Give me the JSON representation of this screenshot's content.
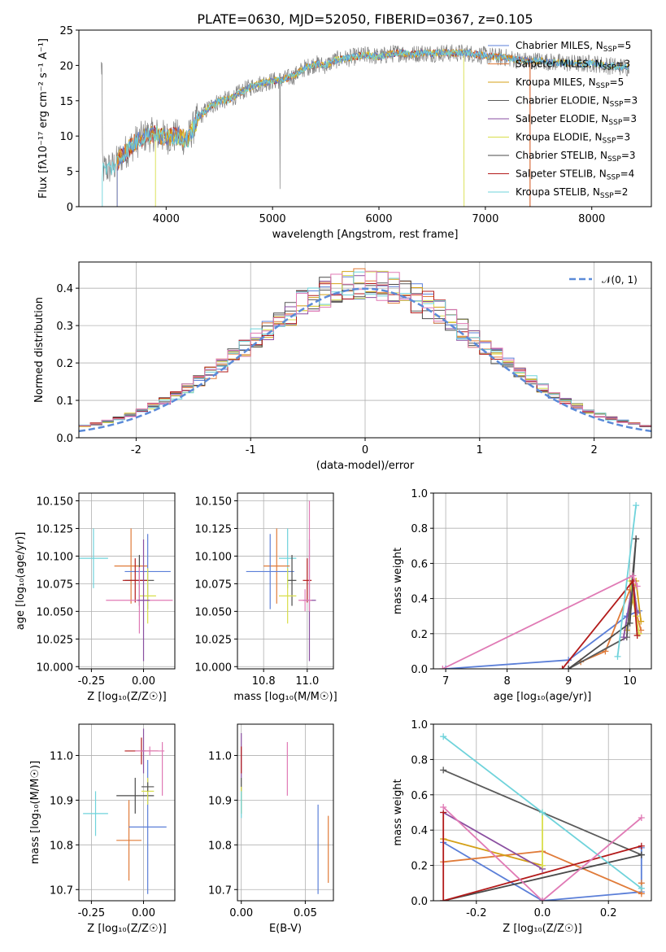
{
  "colors": {
    "Chabrier MILES": "#5b7fd8",
    "Salpeter MILES": "#e07b39",
    "Kroupa MILES": "#d4a017",
    "Chabrier ELODIE": "#5a5a5a",
    "Salpeter ELODIE": "#8a4fa0",
    "Kroupa ELODIE": "#d8de4a",
    "Chabrier STELIB": "#4a4a4a",
    "Salpeter STELIB": "#b31b1b",
    "Kroupa STELIB": "#6fd3db",
    "extra_pink": "#e07ab5",
    "gaussian": "#5b8ad8",
    "data_spectrum": "#808080"
  },
  "chart_data": [
    {
      "id": "spectrum",
      "type": "line",
      "title": "PLATE=0630, MJD=52050, FIBERID=0367, z=0.105",
      "xlabel": "wavelength [Angstrom, rest frame]",
      "ylabel": "Flux [fλ10⁻¹⁷ erg cm⁻² s⁻¹ A⁻¹]",
      "xlim": [
        3180,
        8560
      ],
      "ylim": [
        0,
        25
      ],
      "xticks": [
        4000,
        5000,
        6000,
        7000,
        8000
      ],
      "yticks": [
        0,
        5,
        10,
        15,
        20,
        25
      ],
      "grid": false,
      "legend": "top-right",
      "legend_entries": [
        {
          "label": "Chabrier MILES, N",
          "sub": "SSP",
          "tail": "=5",
          "color_key": "Chabrier MILES"
        },
        {
          "label": "Salpeter MILES, N",
          "sub": "SSP",
          "tail": "=3",
          "color_key": "Salpeter MILES"
        },
        {
          "label": "Kroupa MILES, N",
          "sub": "SSP",
          "tail": "=5",
          "color_key": "Kroupa MILES"
        },
        {
          "label": "Chabrier ELODIE, N",
          "sub": "SSP",
          "tail": "=3",
          "color_key": "Chabrier ELODIE"
        },
        {
          "label": "Salpeter ELODIE, N",
          "sub": "SSP",
          "tail": "=3",
          "color_key": "Salpeter ELODIE"
        },
        {
          "label": "Kroupa ELODIE, N",
          "sub": "SSP",
          "tail": "=3",
          "color_key": "Kroupa ELODIE"
        },
        {
          "label": "Chabrier STELIB, N",
          "sub": "SSP",
          "tail": "=3",
          "color_key": "Chabrier STELIB"
        },
        {
          "label": "Salpeter STELIB, N",
          "sub": "SSP",
          "tail": "=4",
          "color_key": "Salpeter STELIB"
        },
        {
          "label": "Kroupa STELIB, N",
          "sub": "SSP",
          "tail": "=2",
          "color_key": "Kroupa STELIB"
        }
      ],
      "continuum": {
        "x": [
          3400,
          3500,
          3600,
          3700,
          3800,
          3900,
          4000,
          4100,
          4200,
          4300,
          4400,
          4500,
          4600,
          4700,
          4800,
          4900,
          5000,
          5100,
          5200,
          5300,
          5400,
          5500,
          5600,
          5700,
          5800,
          5900,
          6000,
          6100,
          6200,
          6300,
          6400,
          6500,
          6600,
          6700,
          6800,
          6900,
          7000,
          7100,
          7200,
          7300,
          7400,
          7500,
          7600,
          7700,
          7800,
          7900,
          8000,
          8100,
          8200,
          8300,
          8350
        ],
        "y": [
          5.2,
          5.6,
          7.5,
          9.0,
          10.0,
          10.3,
          9.8,
          10.0,
          9.5,
          12.5,
          14.0,
          15.0,
          15.2,
          16.2,
          17.0,
          17.5,
          17.8,
          18.0,
          18.5,
          19.6,
          20.2,
          20.0,
          20.8,
          21.0,
          21.3,
          21.5,
          21.2,
          21.6,
          21.8,
          21.5,
          21.8,
          21.7,
          21.8,
          21.7,
          21.8,
          21.6,
          21.4,
          21.2,
          21.1,
          20.8,
          20.6,
          20.7,
          20.5,
          20.4,
          20.3,
          20.2,
          20.3,
          20.1,
          19.9,
          19.8,
          19.7
        ]
      }
    },
    {
      "id": "residuals",
      "type": "bar",
      "xlabel": "(data-model)/error",
      "ylabel": "Normed distribution",
      "xlim": [
        -2.5,
        2.5
      ],
      "ylim": [
        0,
        0.47
      ],
      "xticks": [
        -2,
        -1,
        0,
        1,
        2
      ],
      "yticks": [
        0.0,
        0.1,
        0.2,
        0.3,
        0.4
      ],
      "grid": true,
      "legend": "top-right",
      "legend_entries": [
        "𝒩(0, 1)"
      ],
      "bin_width": 0.1
    },
    {
      "id": "age_vs_Z",
      "type": "scatter",
      "xlabel": "Z [log₁₀(Z/Z☉)]",
      "ylabel": "age  [log₁₀(age/yr)]",
      "xlim": [
        -0.31,
        0.15
      ],
      "ylim": [
        9.998,
        10.157
      ],
      "xticks": [
        -0.25,
        0.0
      ],
      "yticks": [
        10.0,
        10.025,
        10.05,
        10.075,
        10.1,
        10.125,
        10.15
      ],
      "grid": true,
      "points": [
        {
          "x": -0.24,
          "y": 10.098,
          "xerr": 0.07,
          "yerr": 0.027,
          "color_key": "Kroupa STELIB"
        },
        {
          "x": -0.06,
          "y": 10.091,
          "xerr": 0.08,
          "yerr": 0.034,
          "color_key": "Salpeter MILES"
        },
        {
          "x": 0.02,
          "y": 10.086,
          "xerr": 0.11,
          "yerr": 0.034,
          "color_key": "Chabrier MILES"
        },
        {
          "x": -0.02,
          "y": 10.078,
          "xerr": 0.07,
          "yerr": 0.023,
          "color_key": "Chabrier STELIB"
        },
        {
          "x": -0.04,
          "y": 10.078,
          "xerr": 0.06,
          "yerr": 0.02,
          "color_key": "Salpeter STELIB"
        },
        {
          "x": 0.02,
          "y": 10.064,
          "xerr": 0.04,
          "yerr": 0.025,
          "color_key": "Kroupa ELODIE"
        },
        {
          "x": -0.02,
          "y": 10.06,
          "xerr": 0.16,
          "yerr": 0.03,
          "color_key": "extra_pink"
        },
        {
          "x": 0.0,
          "y": 10.06,
          "xerr": 0.03,
          "yerr": 0.055,
          "color_key": "Salpeter ELODIE"
        }
      ]
    },
    {
      "id": "age_vs_mass",
      "type": "scatter",
      "xlabel": "mass [log₁₀(M/M☉)]",
      "ylabel": "",
      "xlim": [
        10.68,
        11.12
      ],
      "ylim": [
        9.998,
        10.157
      ],
      "xticks": [
        10.8,
        11.0
      ],
      "yticks": [
        10.0,
        10.025,
        10.05,
        10.075,
        10.1,
        10.125,
        10.15
      ],
      "grid": true,
      "points": [
        {
          "x": 10.91,
          "y": 10.098,
          "xerr": 0.04,
          "yerr": 0.027,
          "color_key": "Kroupa STELIB"
        },
        {
          "x": 10.86,
          "y": 10.091,
          "xerr": 0.06,
          "yerr": 0.034,
          "color_key": "Salpeter MILES"
        },
        {
          "x": 10.83,
          "y": 10.086,
          "xerr": 0.11,
          "yerr": 0.034,
          "color_key": "Chabrier MILES"
        },
        {
          "x": 10.93,
          "y": 10.078,
          "xerr": 0.02,
          "yerr": 0.023,
          "color_key": "Chabrier STELIB"
        },
        {
          "x": 11.0,
          "y": 10.078,
          "xerr": 0.02,
          "yerr": 0.02,
          "color_key": "Salpeter STELIB"
        },
        {
          "x": 10.91,
          "y": 10.064,
          "xerr": 0.04,
          "yerr": 0.025,
          "color_key": "Kroupa ELODIE"
        },
        {
          "x": 11.01,
          "y": 10.06,
          "xerr": 0.03,
          "yerr": 0.055,
          "color_key": "Salpeter ELODIE"
        },
        {
          "x": 10.99,
          "y": 10.06,
          "xerr": 0.03,
          "yerr": 0.01,
          "color_key": "extra_pink"
        },
        {
          "x": 11.01,
          "y": 10.1,
          "xerr": 0.0,
          "yerr": 0.05,
          "color_key": "extra_pink"
        }
      ]
    },
    {
      "id": "weight_vs_age",
      "type": "line",
      "xlabel": "age  [log₁₀(age/yr)]",
      "ylabel": "mass weight",
      "xlim": [
        6.8,
        10.35
      ],
      "ylim": [
        0,
        1.0
      ],
      "xticks": [
        7,
        8,
        9,
        10
      ],
      "yticks": [
        0.0,
        0.2,
        0.4,
        0.6,
        0.8,
        1.0
      ],
      "grid": true,
      "series": [
        {
          "color_key": "Chabrier MILES",
          "x": [
            7.0,
            9.0,
            9.95,
            10.15
          ],
          "y": [
            0.0,
            0.05,
            0.3,
            0.33
          ]
        },
        {
          "color_key": "Salpeter MILES",
          "x": [
            9.2,
            9.6,
            10.0,
            10.18
          ],
          "y": [
            0.04,
            0.1,
            0.45,
            0.22
          ]
        },
        {
          "color_key": "Kroupa MILES",
          "x": [
            9.95,
            10.1,
            10.18
          ],
          "y": [
            0.22,
            0.5,
            0.27
          ]
        },
        {
          "color_key": "Chabrier ELODIE",
          "x": [
            9.0,
            9.95,
            10.1
          ],
          "y": [
            0.0,
            0.18,
            0.74
          ]
        },
        {
          "color_key": "Salpeter ELODIE",
          "x": [
            9.9,
            10.05,
            10.12
          ],
          "y": [
            0.18,
            0.5,
            0.32
          ]
        },
        {
          "color_key": "Kroupa ELODIE",
          "x": [
            10.0,
            10.1,
            10.15
          ],
          "y": [
            0.5,
            0.3,
            0.2
          ]
        },
        {
          "color_key": "Chabrier STELIB",
          "x": [
            9.0,
            10.0,
            10.1
          ],
          "y": [
            0.0,
            0.26,
            0.74
          ]
        },
        {
          "color_key": "Salpeter STELIB",
          "x": [
            8.9,
            10.05,
            10.12
          ],
          "y": [
            0.0,
            0.5,
            0.19
          ]
        },
        {
          "color_key": "Kroupa STELIB",
          "x": [
            9.8,
            10.1
          ],
          "y": [
            0.07,
            0.93
          ]
        },
        {
          "color_key": "extra_pink",
          "x": [
            6.95,
            10.05,
            10.12
          ],
          "y": [
            0.0,
            0.53,
            0.47
          ]
        }
      ]
    },
    {
      "id": "mass_vs_Z",
      "type": "scatter",
      "xlabel": "Z [log₁₀(Z/Z☉)]",
      "ylabel": "mass [log₁₀(M/M☉)]",
      "xlim": [
        -0.31,
        0.15
      ],
      "ylim": [
        10.675,
        11.07
      ],
      "xticks": [
        -0.25,
        0.0
      ],
      "yticks": [
        10.7,
        10.8,
        10.9,
        11.0
      ],
      "grid": true,
      "points": [
        {
          "x": -0.23,
          "y": 10.87,
          "xerr": 0.06,
          "yerr": 0.05,
          "color_key": "Kroupa STELIB"
        },
        {
          "x": -0.07,
          "y": 10.81,
          "xerr": 0.06,
          "yerr": 0.09,
          "color_key": "Salpeter MILES"
        },
        {
          "x": 0.02,
          "y": 10.84,
          "xerr": 0.09,
          "yerr": 0.15,
          "color_key": "Chabrier MILES"
        },
        {
          "x": -0.04,
          "y": 10.91,
          "xerr": 0.09,
          "yerr": 0.04,
          "color_key": "Chabrier STELIB"
        },
        {
          "x": -0.01,
          "y": 11.01,
          "xerr": 0.08,
          "yerr": 0.03,
          "color_key": "Salpeter STELIB"
        },
        {
          "x": 0.02,
          "y": 10.92,
          "xerr": 0.03,
          "yerr": 0.03,
          "color_key": "Kroupa ELODIE"
        },
        {
          "x": 0.02,
          "y": 10.93,
          "xerr": 0.03,
          "yerr": 0.01,
          "color_key": "Chabrier ELODIE"
        },
        {
          "x": 0.0,
          "y": 11.01,
          "xerr": 0.01,
          "yerr": 0.05,
          "color_key": "Salpeter ELODIE"
        },
        {
          "x": 0.03,
          "y": 11.01,
          "xerr": 0.07,
          "yerr": 0.01,
          "color_key": "extra_pink"
        },
        {
          "x": 0.09,
          "y": 10.97,
          "xerr": 0.0,
          "yerr": 0.06,
          "color_key": "extra_pink"
        }
      ]
    },
    {
      "id": "mass_vs_ebv",
      "type": "scatter",
      "xlabel": "E(B-V)",
      "ylabel": "",
      "xlim": [
        -0.003,
        0.072
      ],
      "ylim": [
        10.675,
        11.07
      ],
      "xticks": [
        0.0,
        0.05
      ],
      "yticks": [
        10.7,
        10.8,
        10.9,
        11.0
      ],
      "grid": true,
      "points": [
        {
          "x": 0.0,
          "y": 11.0,
          "xerr": 0.0,
          "yerr": 0.05,
          "color_key": "Salpeter ELODIE"
        },
        {
          "x": 0.0,
          "y": 10.99,
          "xerr": 0.0,
          "yerr": 0.03,
          "color_key": "Salpeter STELIB"
        },
        {
          "x": 0.0,
          "y": 10.91,
          "xerr": 0.0,
          "yerr": 0.04,
          "color_key": "Chabrier STELIB"
        },
        {
          "x": 0.0,
          "y": 10.9,
          "xerr": 0.0,
          "yerr": 0.03,
          "color_key": "Kroupa ELODIE"
        },
        {
          "x": 0.0,
          "y": 10.89,
          "xerr": 0.0,
          "yerr": 0.03,
          "color_key": "Kroupa STELIB"
        },
        {
          "x": 0.036,
          "y": 10.97,
          "xerr": 0.0,
          "yerr": 0.06,
          "color_key": "extra_pink"
        },
        {
          "x": 0.06,
          "y": 10.79,
          "xerr": 0.0,
          "yerr": 0.1,
          "color_key": "Chabrier MILES"
        },
        {
          "x": 0.068,
          "y": 10.79,
          "xerr": 0.0,
          "yerr": 0.075,
          "color_key": "Salpeter MILES"
        }
      ]
    },
    {
      "id": "weight_vs_Z",
      "type": "line",
      "xlabel": "Z [log₁₀(Z/Z☉)]",
      "ylabel": "mass weight",
      "xlim": [
        -0.33,
        0.33
      ],
      "ylim": [
        0,
        1.0
      ],
      "xticks": [
        -0.2,
        0.0,
        0.2
      ],
      "yticks": [
        0.0,
        0.2,
        0.4,
        0.6,
        0.8,
        1.0
      ],
      "grid": true,
      "series": [
        {
          "color_key": "Chabrier MILES",
          "x": [
            -0.3,
            0.0,
            0.3,
            0.3
          ],
          "y": [
            0.33,
            0.0,
            0.05,
            0.3
          ]
        },
        {
          "color_key": "Salpeter MILES",
          "x": [
            -0.3,
            0.0,
            0.3,
            0.3
          ],
          "y": [
            0.22,
            0.28,
            0.04,
            0.1
          ]
        },
        {
          "color_key": "Kroupa MILES",
          "x": [
            -0.3,
            0.0
          ],
          "y": [
            0.35,
            0.2
          ]
        },
        {
          "color_key": "Chabrier ELODIE",
          "x": [
            -0.3,
            0.3
          ],
          "y": [
            0.74,
            0.26
          ]
        },
        {
          "color_key": "Salpeter ELODIE",
          "x": [
            -0.3,
            0.0
          ],
          "y": [
            0.5,
            0.18
          ]
        },
        {
          "color_key": "Kroupa ELODIE",
          "x": [
            0.0,
            0.0
          ],
          "y": [
            0.5,
            0.2
          ]
        },
        {
          "color_key": "Chabrier STELIB",
          "x": [
            -0.3,
            0.3
          ],
          "y": [
            0.0,
            0.26
          ]
        },
        {
          "color_key": "Salpeter STELIB",
          "x": [
            -0.3,
            -0.3,
            0.3
          ],
          "y": [
            0.5,
            0.0,
            0.31
          ]
        },
        {
          "color_key": "Kroupa STELIB",
          "x": [
            -0.3,
            0.0,
            0.3
          ],
          "y": [
            0.93,
            0.5,
            0.07
          ]
        },
        {
          "color_key": "extra_pink",
          "x": [
            -0.3,
            0.0,
            0.3
          ],
          "y": [
            0.53,
            0.0,
            0.47
          ]
        }
      ]
    }
  ]
}
